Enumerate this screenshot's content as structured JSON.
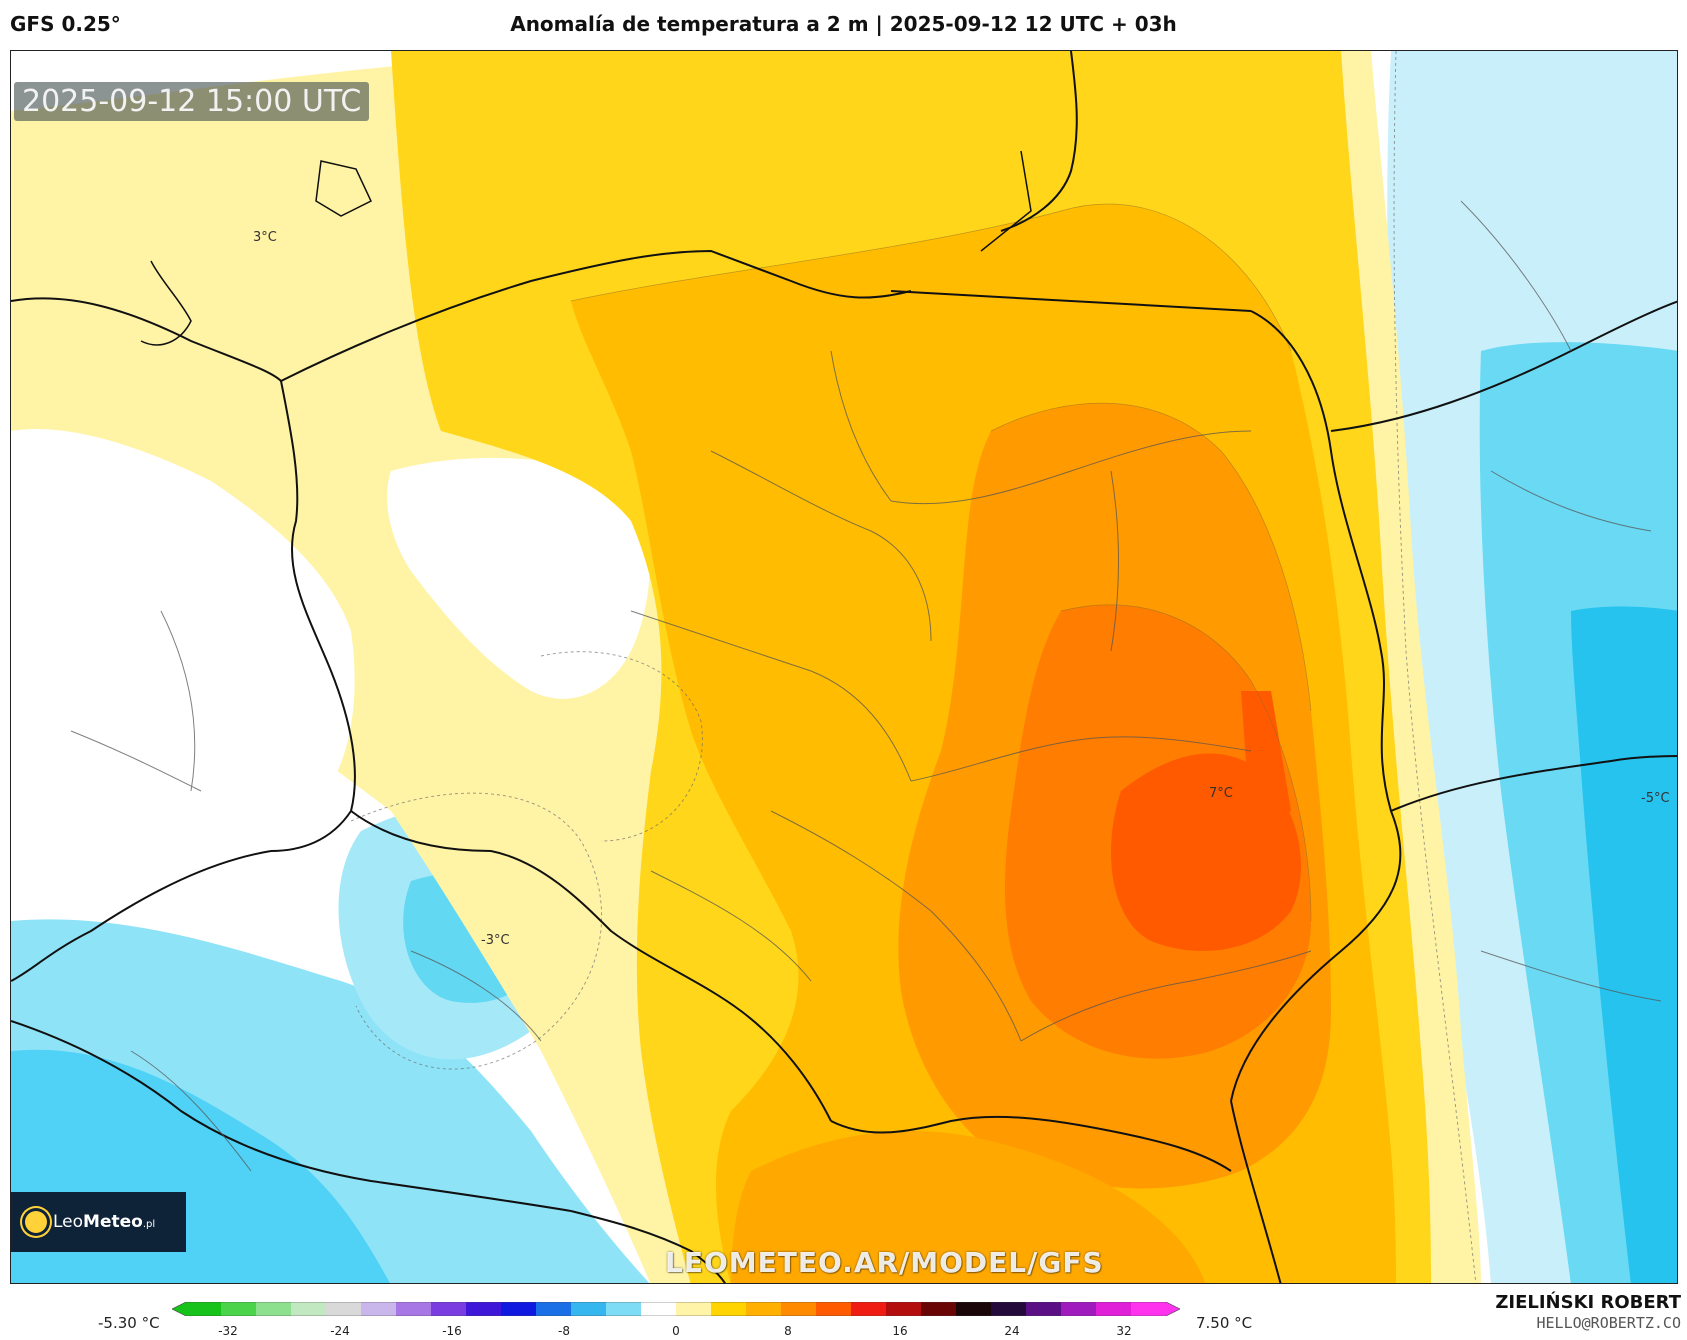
{
  "header": {
    "model": "GFS 0.25°",
    "title": "Anomalía de temperatura a 2 m | 2025-09-12 12 UTC + 03h"
  },
  "map": {
    "valid_time": "2025-09-12 15:00 UTC",
    "contour_labels": [
      {
        "name": "label-3c-north",
        "text": "3°C"
      },
      {
        "name": "label-7c-east",
        "text": "7°C"
      },
      {
        "name": "label-minus3c-czech",
        "text": "-3°C"
      },
      {
        "name": "label-minus5c-ukraine",
        "text": "-5°C"
      }
    ],
    "watermark": "LEOMETEO.AR/MODEL/GFS"
  },
  "logo": {
    "brand_light": "Leo",
    "brand_bold": "Meteo",
    "suffix": ".pl"
  },
  "legend": {
    "min_label": "-5.30 °C",
    "max_label": "7.50 °C",
    "ticks": [
      "-32",
      "-24",
      "-16",
      "-8",
      "0",
      "8",
      "16",
      "24",
      "32"
    ],
    "tick_values": [
      -32,
      -24,
      -16,
      -8,
      0,
      8,
      16,
      24,
      32
    ],
    "range": [
      -35,
      35
    ],
    "colors": [
      "#17c21a",
      "#4bd34b",
      "#8de08d",
      "#c2e8c2",
      "#d9d9d9",
      "#c9b6ea",
      "#a877e6",
      "#7a3de0",
      "#3e17d9",
      "#0f19e0",
      "#1a6fe6",
      "#35b6ef",
      "#7fdcf5",
      "#ffffff",
      "#fff4a8",
      "#ffd400",
      "#ffb000",
      "#ff8a00",
      "#ff5a00",
      "#ee1c12",
      "#b40d0d",
      "#6a0505",
      "#1a0508",
      "#240a3a",
      "#5a0f84",
      "#a01bbd",
      "#e01fd8",
      "#ff33ee"
    ]
  },
  "author": {
    "name": "ZIELIŃSKI ROBERT",
    "email": "HELLO@ROBERTZ.CO"
  }
}
